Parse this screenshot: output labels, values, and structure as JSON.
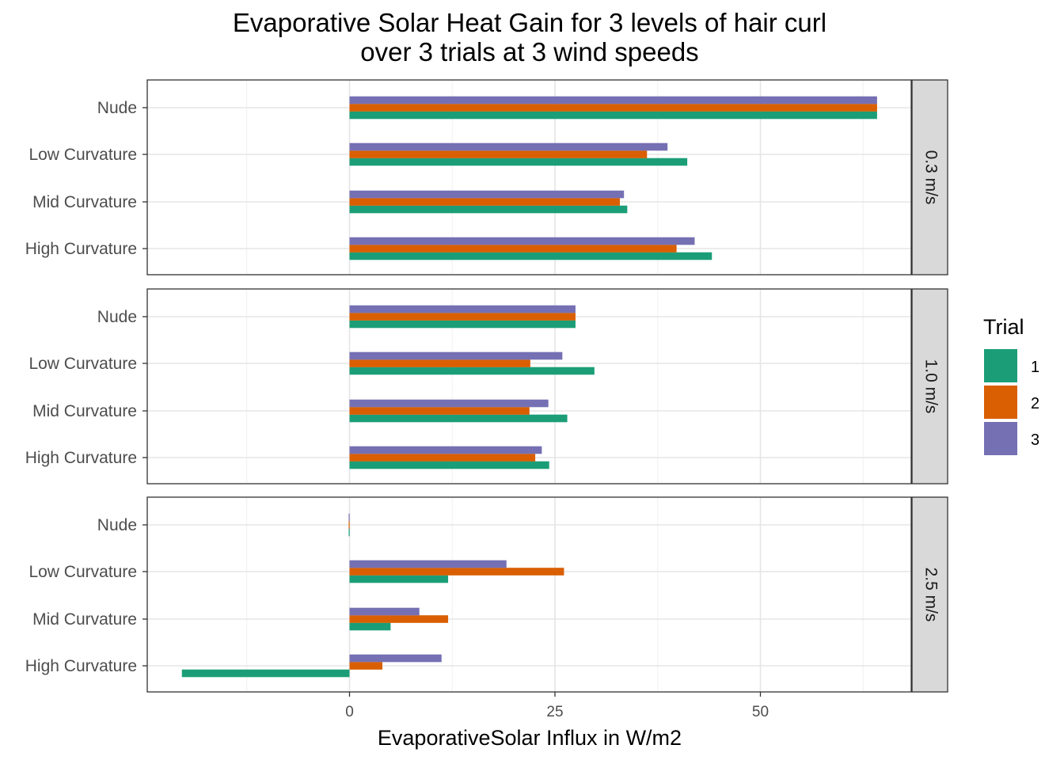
{
  "chart_data": {
    "type": "bar",
    "orientation": "horizontal",
    "title_lines": [
      "Evaporative Solar Heat Gain for 3 levels of hair curl",
      "over 3 trials at 3 wind speeds"
    ],
    "xlabel": "EvaporativeSolar Influx in W/m2",
    "ylabel": "",
    "xlim": [
      -25,
      68
    ],
    "x_ticks": [
      0,
      25,
      50
    ],
    "grid": true,
    "categories": [
      "Nude",
      "Low Curvature",
      "Mid Curvature",
      "High Curvature"
    ],
    "legend": {
      "title": "Trial",
      "position": "right",
      "entries": [
        {
          "label": "1",
          "color": "#1b9e77"
        },
        {
          "label": "2",
          "color": "#d95f02"
        },
        {
          "label": "3",
          "color": "#7570b3"
        }
      ]
    },
    "panels": [
      {
        "strip": "0.3 m/s",
        "series": [
          {
            "trial": "1",
            "values": [
              64.2,
              41.1,
              33.8,
              44.1
            ]
          },
          {
            "trial": "2",
            "values": [
              64.2,
              36.2,
              32.9,
              39.8
            ]
          },
          {
            "trial": "3",
            "values": [
              64.2,
              38.7,
              33.4,
              42.0
            ]
          }
        ]
      },
      {
        "strip": "1.0 m/s",
        "series": [
          {
            "trial": "1",
            "values": [
              27.5,
              29.8,
              26.5,
              24.3
            ]
          },
          {
            "trial": "2",
            "values": [
              27.5,
              22.0,
              21.9,
              22.6
            ]
          },
          {
            "trial": "3",
            "values": [
              27.5,
              25.9,
              24.2,
              23.4
            ]
          }
        ]
      },
      {
        "strip": "2.5 m/s",
        "series": [
          {
            "trial": "1",
            "values": [
              -0.1,
              12.0,
              5.0,
              -20.4
            ]
          },
          {
            "trial": "2",
            "values": [
              -0.1,
              26.1,
              12.0,
              4.0
            ]
          },
          {
            "trial": "3",
            "values": [
              -0.1,
              19.1,
              8.5,
              11.2
            ]
          }
        ]
      }
    ]
  }
}
